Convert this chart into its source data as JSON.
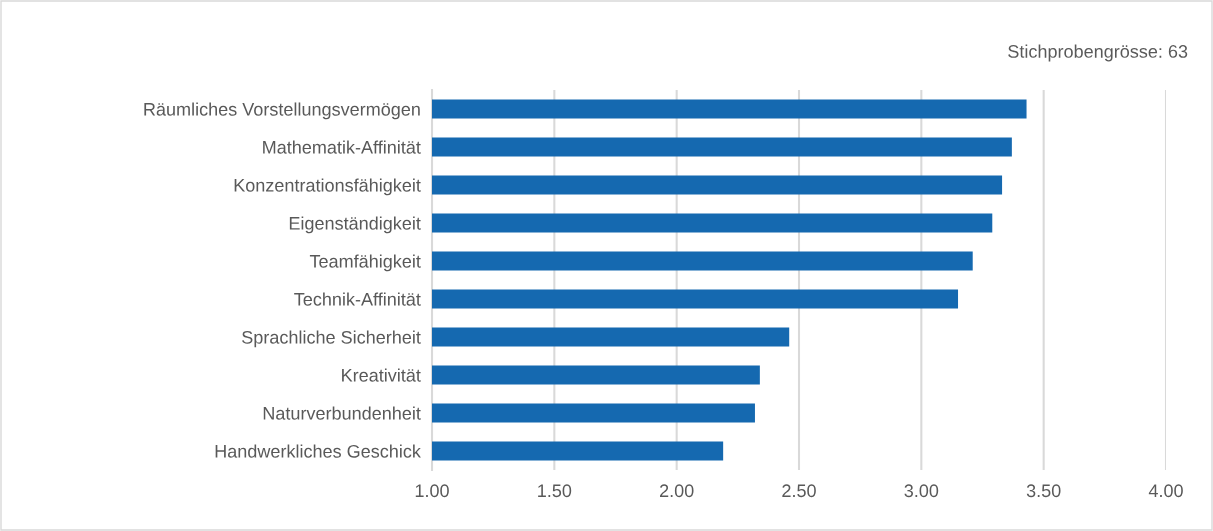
{
  "chart_data": {
    "type": "bar",
    "orientation": "horizontal",
    "categories": [
      "Räumliches Vorstellungsvermögen",
      "Mathematik-Affinität",
      "Konzentrationsfähigkeit",
      "Eigenständigkeit",
      "Teamfähigkeit",
      "Technik-Affinität",
      "Sprachliche Sicherheit",
      "Kreativität",
      "Naturverbundenheit",
      "Handwerkliches Geschick"
    ],
    "values": [
      3.43,
      3.37,
      3.33,
      3.29,
      3.21,
      3.15,
      2.46,
      2.34,
      2.32,
      2.19
    ],
    "color": "#1569b0",
    "xlim": [
      1.0,
      4.0
    ],
    "xticks": [
      {
        "value": 1.0,
        "label": "1.00"
      },
      {
        "value": 1.5,
        "label": "1.50"
      },
      {
        "value": 2.0,
        "label": "2.00"
      },
      {
        "value": 2.5,
        "label": "2.50"
      },
      {
        "value": 3.0,
        "label": "3.00"
      },
      {
        "value": 3.5,
        "label": "3.50"
      },
      {
        "value": 4.0,
        "label": "4.00"
      }
    ],
    "grid": "x",
    "annotations": [
      "Stichprobengrösse: 63"
    ]
  }
}
